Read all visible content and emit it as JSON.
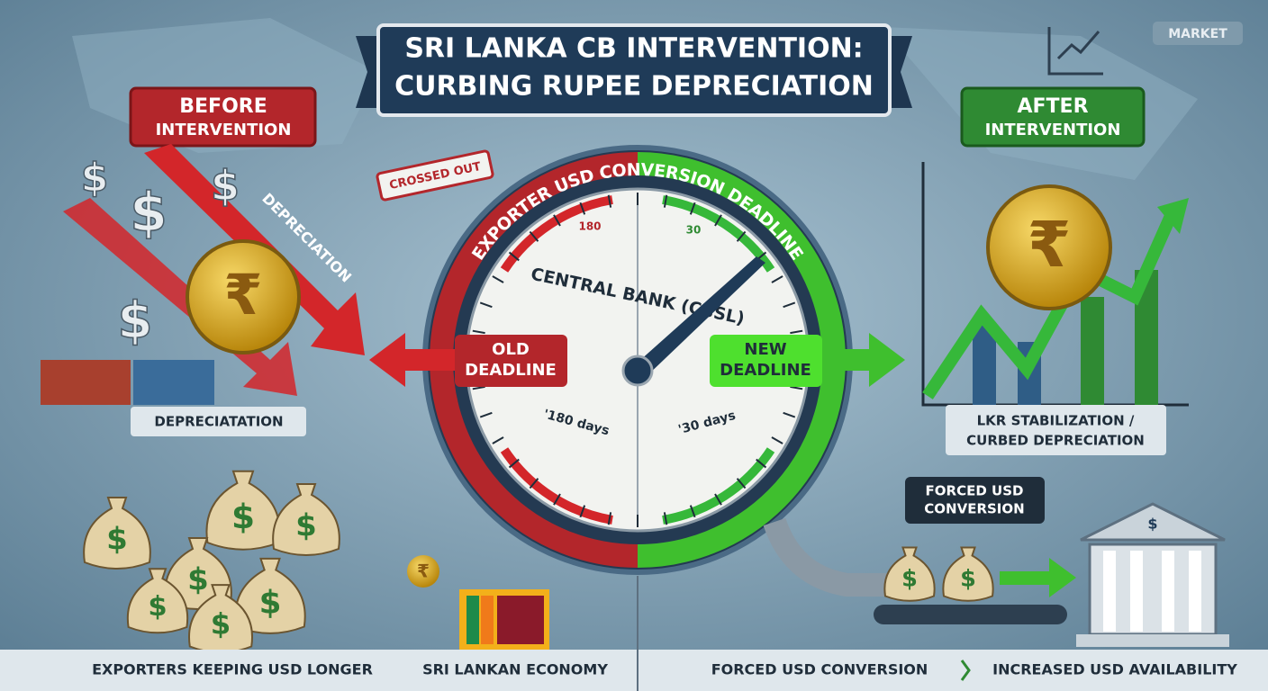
{
  "header": {
    "title_line1": "SRI LANKA CB INTERVENTION:",
    "title_line2": "CURBING RUPEE DEPRECIATION",
    "badge": "MARKET"
  },
  "symbols": {
    "dollar": "$",
    "rupee": "₹"
  },
  "before": {
    "label": "BEFORE",
    "sublabel": "INTERVENTION",
    "arrow_label": "DEPRECIATION",
    "caption": "DEPRECIATATION"
  },
  "after": {
    "label": "AFTER",
    "sublabel": "INTERVENTION",
    "caption_line1": "LKR STABILIZATION /",
    "caption_line2": "CURBED DEPRECIATION"
  },
  "gauge": {
    "arc_title": "EXPORTER USD CONVERSION DEADLINE",
    "center": "CENTRAL BANK (CBSL)",
    "old_line1": "OLD",
    "old_line2": "DEADLINE",
    "new_line1": "NEW",
    "new_line2": "DEADLINE",
    "old_days": "'180 days",
    "new_days": "'30 days",
    "old_mark": "180",
    "new_mark": "30",
    "stamp": "CROSSED OUT"
  },
  "conversion": {
    "callout_line1": "FORCED USD",
    "callout_line2": "CONVERSION"
  },
  "footer": {
    "items": [
      "EXPORTERS KEEPING USD LONGER",
      "SRI LANKAN ECONOMY",
      "FORCED USD CONVERSION",
      "INCREASED USD AVAILABILITY"
    ]
  }
}
